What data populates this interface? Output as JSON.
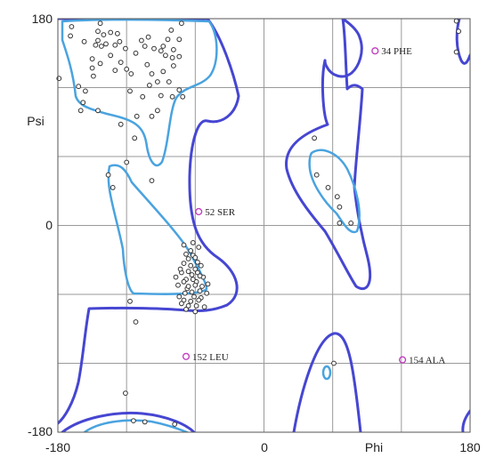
{
  "chart_data": {
    "type": "scatter",
    "xlabel": "Phi",
    "ylabel": "Psi",
    "xlim": [
      -180,
      180
    ],
    "ylim": [
      -180,
      180
    ],
    "x_ticks": [
      "-180",
      "0",
      "180"
    ],
    "y_ticks": [
      "180",
      "0",
      "-180"
    ],
    "grid": true,
    "colors": {
      "core_contour": "#4aa3df",
      "allowed_contour": "#4646d2",
      "residue_point": "#333333",
      "outlier_point": "#c040c0"
    },
    "annotations": [
      {
        "label": "34 PHE",
        "x": 97,
        "y": 152
      },
      {
        "label": "52 SER",
        "x": -57,
        "y": 12
      },
      {
        "label": "152 LEU",
        "x": -68,
        "y": -114
      },
      {
        "label": "154 ALA",
        "x": 121,
        "y": -117
      }
    ],
    "series": [
      {
        "points": [
          [
            -168,
            173
          ],
          [
            -169,
            165
          ],
          [
            -143,
            176
          ],
          [
            -157,
            160
          ],
          [
            -145,
            161
          ],
          [
            -147,
            157
          ],
          [
            -140,
            166
          ],
          [
            -145,
            169
          ],
          [
            -134,
            168
          ],
          [
            -128,
            167
          ],
          [
            -138,
            158
          ],
          [
            -142,
            156
          ],
          [
            -126,
            160
          ],
          [
            -130,
            157
          ],
          [
            -121,
            154
          ],
          [
            -101,
            164
          ],
          [
            -107,
            161
          ],
          [
            -104,
            156
          ],
          [
            -96,
            154
          ],
          [
            -88,
            156
          ],
          [
            -84,
            162
          ],
          [
            -90,
            152
          ],
          [
            -79,
            153
          ],
          [
            -74,
            147
          ],
          [
            -74,
            162
          ],
          [
            -81,
            170
          ],
          [
            -72,
            176
          ],
          [
            -86,
            148
          ],
          [
            -80,
            146
          ],
          [
            -79,
            139
          ],
          [
            -150,
            145
          ],
          [
            -143,
            141
          ],
          [
            -150,
            137
          ],
          [
            -125,
            142
          ],
          [
            -130,
            135
          ],
          [
            -120,
            136
          ],
          [
            -116,
            132
          ],
          [
            -134,
            148
          ],
          [
            -112,
            150
          ],
          [
            -102,
            140
          ],
          [
            -98,
            132
          ],
          [
            -88,
            134
          ],
          [
            -83,
            125
          ],
          [
            -93,
            125
          ],
          [
            -149,
            130
          ],
          [
            -156,
            117
          ],
          [
            -162,
            121
          ],
          [
            -179,
            128
          ],
          [
            -158,
            107
          ],
          [
            -160,
            100
          ],
          [
            -117,
            117
          ],
          [
            -106,
            112
          ],
          [
            -100,
            122
          ],
          [
            -90,
            113
          ],
          [
            -80,
            112
          ],
          [
            -71,
            112
          ],
          [
            -74,
            118
          ],
          [
            -111,
            95
          ],
          [
            -93,
            100
          ],
          [
            -98,
            95
          ],
          [
            -113,
            76
          ],
          [
            -125,
            88
          ],
          [
            -145,
            100
          ],
          [
            -120,
            55
          ],
          [
            -136,
            44
          ],
          [
            -132,
            33
          ],
          [
            -98,
            39
          ],
          [
            -62,
            -15
          ],
          [
            -57,
            -19
          ],
          [
            -70,
            -17
          ],
          [
            -64,
            -22
          ],
          [
            -62,
            -26
          ],
          [
            -60,
            -28
          ],
          [
            -68,
            -25
          ],
          [
            -66,
            -29
          ],
          [
            -58,
            -32
          ],
          [
            -55,
            -35
          ],
          [
            -64,
            -35
          ],
          [
            -70,
            -33
          ],
          [
            -60,
            -38
          ],
          [
            -58,
            -41
          ],
          [
            -63,
            -43
          ],
          [
            -66,
            -40
          ],
          [
            -72,
            -41
          ],
          [
            -68,
            -47
          ],
          [
            -59,
            -49
          ],
          [
            -53,
            -45
          ],
          [
            -54,
            -53
          ],
          [
            -60,
            -52
          ],
          [
            -67,
            -55
          ],
          [
            -75,
            -52
          ],
          [
            -77,
            -45
          ],
          [
            -73,
            -38
          ],
          [
            -56,
            -57
          ],
          [
            -63,
            -58
          ],
          [
            -69,
            -59
          ],
          [
            -61,
            -62
          ],
          [
            -55,
            -63
          ],
          [
            -50,
            -59
          ],
          [
            -49,
            -51
          ],
          [
            -70,
            -65
          ],
          [
            -72,
            -68
          ],
          [
            -64,
            -66
          ],
          [
            -57,
            -65
          ],
          [
            -66,
            -70
          ],
          [
            -59,
            -70
          ],
          [
            -52,
            -71
          ],
          [
            -68,
            -73
          ],
          [
            -60,
            -75
          ],
          [
            -74,
            -62
          ],
          [
            -66,
            -53
          ],
          [
            -70,
            -49
          ],
          [
            -62,
            -47
          ],
          [
            -56,
            -44
          ],
          [
            -117,
            -66
          ],
          [
            -112,
            -84
          ],
          [
            44,
            76
          ],
          [
            46,
            44
          ],
          [
            56,
            33
          ],
          [
            64,
            25
          ],
          [
            66,
            16
          ],
          [
            66,
            2
          ],
          [
            76,
            2
          ],
          [
            -121,
            -146
          ],
          [
            -114,
            -170
          ],
          [
            -104,
            -171
          ],
          [
            -78,
            -173
          ],
          [
            61,
            -120
          ],
          [
            168,
            178
          ],
          [
            170,
            169
          ],
          [
            168,
            151
          ]
        ]
      }
    ]
  }
}
